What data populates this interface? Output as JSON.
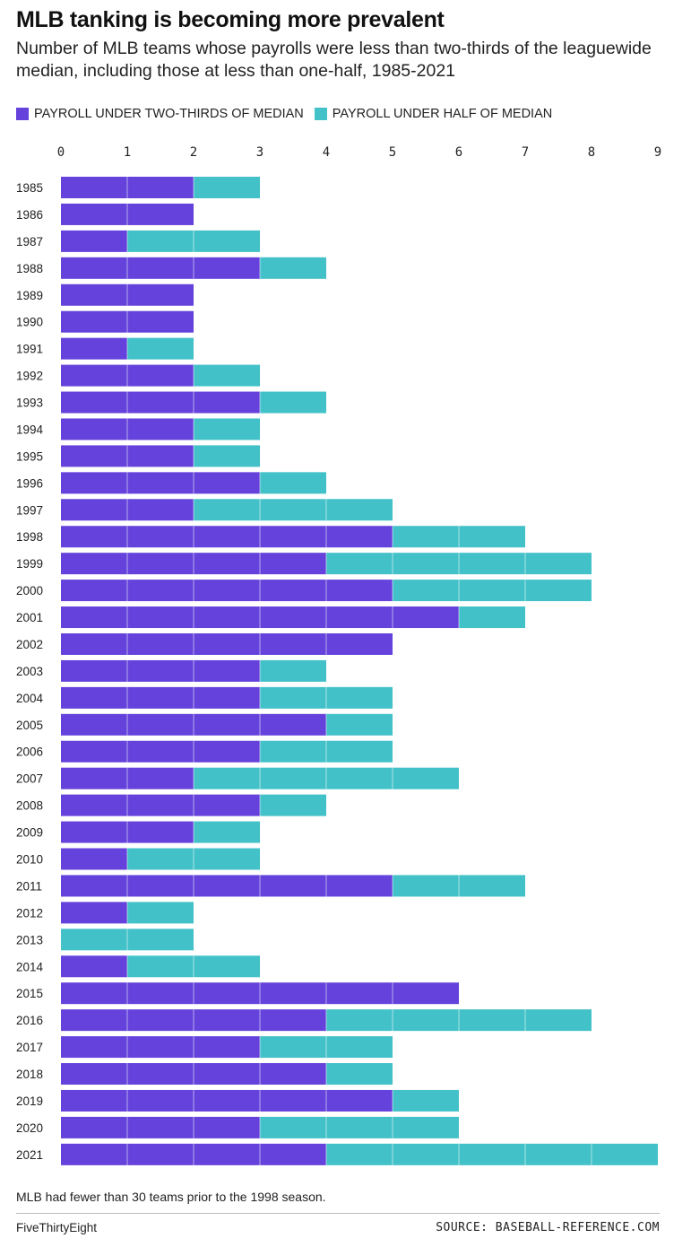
{
  "header": {
    "title": "MLB tanking is becoming more prevalent",
    "subtitle": "Number of MLB teams whose payrolls were less than two-thirds of the leaguewide median, including those at less than one-half, 1985-2021"
  },
  "legend": {
    "items": [
      {
        "label": "PAYROLL UNDER TWO-THIRDS OF MEDIAN",
        "color": "#6442db"
      },
      {
        "label": "PAYROLL UNDER HALF OF MEDIAN",
        "color": "#42c1c8"
      }
    ]
  },
  "chart_data": {
    "type": "bar",
    "orientation": "horizontal",
    "stacked": true,
    "xlim": [
      0,
      9
    ],
    "x_ticks": [
      "0",
      "1",
      "2",
      "3",
      "4",
      "5",
      "6",
      "7",
      "8",
      "9"
    ],
    "categories": [
      "1985",
      "1986",
      "1987",
      "1988",
      "1989",
      "1990",
      "1991",
      "1992",
      "1993",
      "1994",
      "1995",
      "1996",
      "1997",
      "1998",
      "1999",
      "2000",
      "2001",
      "2002",
      "2003",
      "2004",
      "2005",
      "2006",
      "2007",
      "2008",
      "2009",
      "2010",
      "2011",
      "2012",
      "2013",
      "2014",
      "2015",
      "2016",
      "2017",
      "2018",
      "2019",
      "2020",
      "2021"
    ],
    "series": [
      {
        "name": "PAYROLL UNDER TWO-THIRDS OF MEDIAN",
        "color": "#6442db",
        "values": [
          2,
          2,
          1,
          3,
          2,
          2,
          1,
          2,
          3,
          2,
          2,
          3,
          2,
          5,
          4,
          5,
          6,
          5,
          3,
          3,
          4,
          3,
          2,
          3,
          2,
          1,
          5,
          1,
          0,
          1,
          6,
          4,
          3,
          4,
          5,
          3,
          4
        ]
      },
      {
        "name": "PAYROLL UNDER HALF OF MEDIAN",
        "color": "#42c1c8",
        "values": [
          1,
          0,
          2,
          1,
          0,
          0,
          1,
          1,
          1,
          1,
          1,
          1,
          3,
          2,
          4,
          3,
          1,
          0,
          1,
          2,
          1,
          2,
          4,
          1,
          1,
          2,
          2,
          1,
          2,
          2,
          0,
          4,
          2,
          1,
          1,
          3,
          5
        ]
      }
    ]
  },
  "footer": {
    "note": "MLB had fewer than 30 teams prior to the 1998 season.",
    "brand": "FiveThirtyEight",
    "source": "SOURCE: BASEBALL-REFERENCE.COM"
  }
}
